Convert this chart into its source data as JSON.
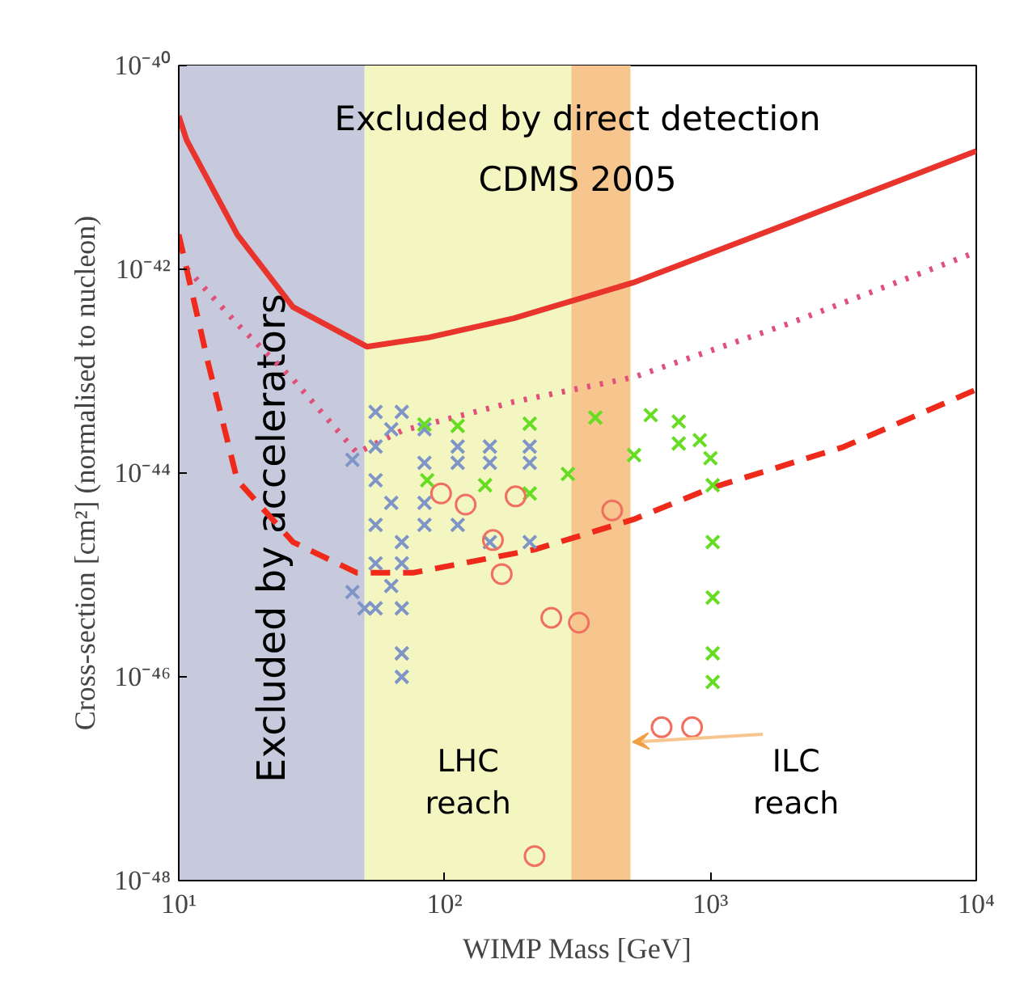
{
  "chart_data": {
    "type": "line",
    "xlabel": "WIMP Mass [GeV]",
    "ylabel": "Cross-section [cm²] (normalised to nucleon)",
    "log": "xy",
    "grid": false,
    "xlim": [
      10,
      10000
    ],
    "ylim": [
      1e-48,
      1e-40
    ],
    "xticks": [
      {
        "value": 10,
        "label": "10¹"
      },
      {
        "value": 100,
        "label": "10²"
      },
      {
        "value": 1000,
        "label": "10³"
      },
      {
        "value": 10000,
        "label": "10⁴"
      }
    ],
    "yticks": [
      {
        "value": 1e-48,
        "label": "10⁻⁴⁸"
      },
      {
        "value": 1e-46,
        "label": "10⁻⁴⁶"
      },
      {
        "value": 1e-44,
        "label": "10⁻⁴⁴"
      },
      {
        "value": 1e-42,
        "label": "10⁻⁴²"
      },
      {
        "value": 1e-40,
        "label": "10⁻⁴⁰"
      }
    ],
    "annotations": [
      "Excluded by direct detection",
      "CDMS 2005"
    ],
    "bands": [
      {
        "axis": "x",
        "from": 10,
        "to": 50,
        "label": "Excluded by accelerators",
        "color": "#c6cadc"
      },
      {
        "axis": "x",
        "from": 50,
        "to": 500,
        "label": "LHC\nreach",
        "color": "#f4f6c2"
      },
      {
        "axis": "x",
        "from": 300,
        "to": 500,
        "label": "ILC\nreach",
        "color": "#f6c68e"
      }
    ],
    "series": [
      {
        "line_style": "solid",
        "color": "#e8342c",
        "x": [
          10,
          10.7,
          16.6,
          26.9,
          51,
          87,
          182,
          513,
          1950,
          10000
        ],
        "values": [
          3.2e-41,
          1.86e-41,
          2.19e-42,
          4.27e-43,
          1.74e-43,
          2.14e-43,
          3.3e-43,
          7.4e-43,
          2.8e-42,
          1.45e-41
        ]
      },
      {
        "line_style": "dotted",
        "color": "#e0507a",
        "x": [
          10.7,
          16.6,
          26.9,
          46.8,
          69,
          182,
          513,
          1950,
          9550
        ],
        "values": [
          1.02e-42,
          2.9e-43,
          8.3e-44,
          1.58e-44,
          2.6e-44,
          5e-44,
          8.7e-44,
          2.9e-43,
          1.41e-42
        ]
      },
      {
        "line_style": "dashed",
        "color": "#f02a1a",
        "x": [
          10,
          12.9,
          16.6,
          26.9,
          46.8,
          76,
          219,
          513,
          1000,
          3160,
          10000
        ],
        "values": [
          2.19e-42,
          1.2e-43,
          8.5e-45,
          2.1e-45,
          1.05e-45,
          1.05e-45,
          1.78e-45,
          3.5e-45,
          7.1e-45,
          1.8e-44,
          6.6e-44
        ]
      },
      {
        "type": "scatter",
        "marker": "cross",
        "color": "#7f95c8",
        "x": [
          55,
          55,
          55,
          55,
          55,
          55,
          63,
          63,
          63,
          69,
          84,
          84,
          112,
          148,
          209,
          112,
          148,
          209,
          84,
          84,
          112,
          148,
          209,
          69,
          69,
          69,
          69,
          69,
          45,
          45,
          50
        ],
        "values": [
          3.98e-44,
          1.82e-44,
          8.5e-45,
          3.1e-45,
          1.3e-45,
          4.7e-46,
          2.69e-44,
          5.1e-45,
          7.8e-46,
          3.98e-44,
          2.69e-44,
          1.26e-44,
          1.26e-44,
          1.26e-44,
          1.26e-44,
          1.82e-44,
          1.82e-44,
          1.82e-44,
          5.1e-45,
          3.1e-45,
          3.1e-45,
          2.1e-45,
          2.1e-45,
          2.1e-45,
          1.3e-45,
          4.7e-46,
          1.7e-46,
          1e-46,
          1.35e-44,
          6.8e-46,
          4.7e-46
        ]
      },
      {
        "type": "scatter",
        "marker": "cross",
        "color": "#66dd22",
        "x": [
          84,
          112,
          209,
          369,
          596,
          760,
          912,
          1000,
          1020,
          1020,
          1020,
          1020,
          1020,
          86,
          142,
          209,
          291,
          516,
          760
        ],
        "values": [
          3e-44,
          2.9e-44,
          3.05e-44,
          3.5e-44,
          3.7e-44,
          3.2e-44,
          2.1e-44,
          1.4e-44,
          7.6e-45,
          2.1e-45,
          6e-46,
          1.7e-46,
          8.9e-47,
          8.5e-45,
          7.6e-45,
          6.3e-45,
          9.8e-45,
          1.5e-44,
          1.95e-44
        ]
      },
      {
        "type": "scatter",
        "marker": "circle",
        "color": "#f07060",
        "x": [
          97,
          120,
          185,
          427,
          152,
          164,
          252,
          320,
          655,
          853,
          218
        ],
        "values": [
          6.3e-45,
          4.9e-45,
          5.9e-45,
          4.3e-45,
          2.2e-45,
          1.02e-45,
          3.8e-46,
          3.4e-46,
          3.2e-47,
          3.2e-47,
          1.74e-48
        ]
      }
    ]
  }
}
